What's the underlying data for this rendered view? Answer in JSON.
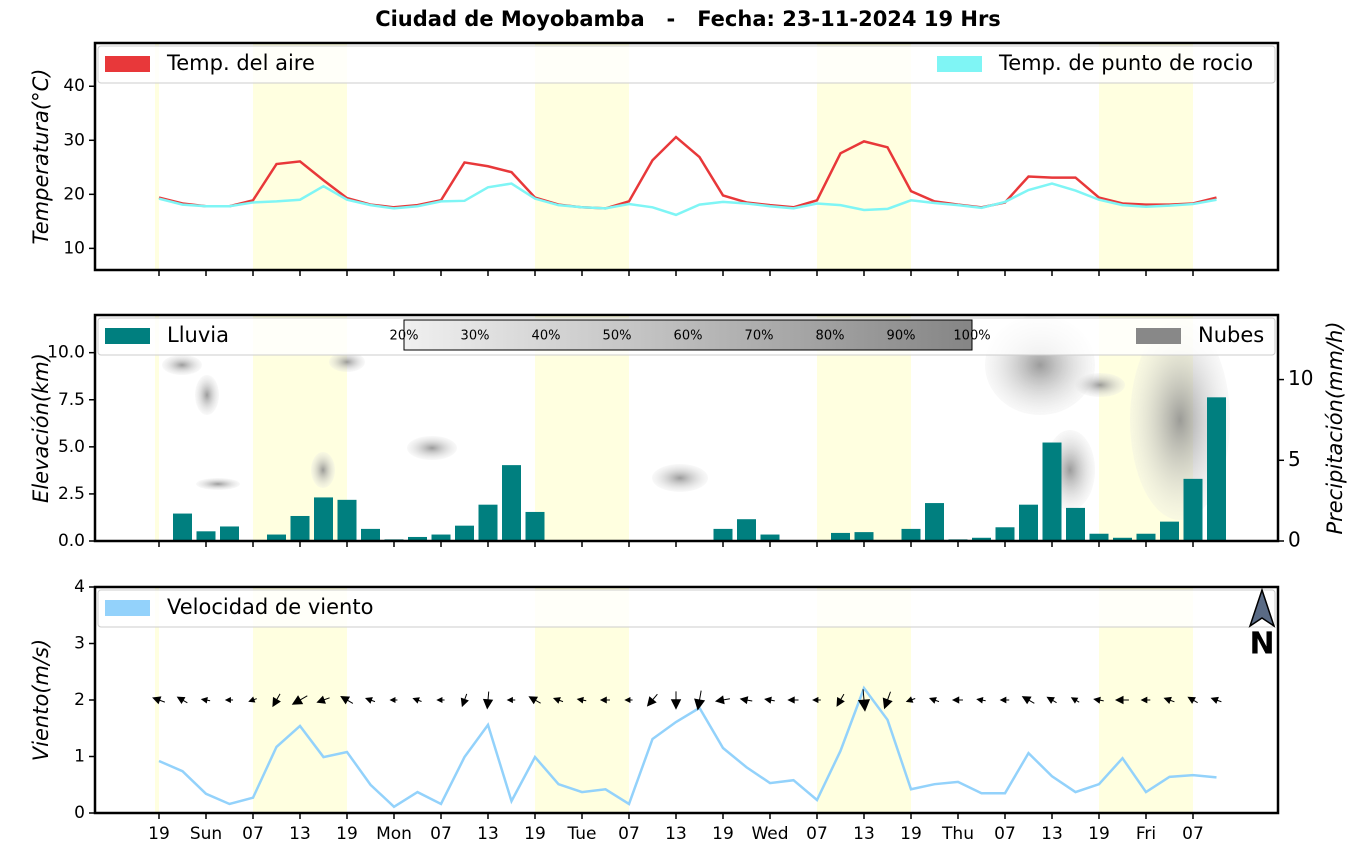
{
  "title": "Ciudad de Moyobamba   -   Fecha: 23-11-2024 19 Hrs",
  "north": "N",
  "chart_data": [
    {
      "type": "line",
      "ylabel": "Temperatura(°C)",
      "ylim": [
        6,
        48
      ],
      "yticks": [
        10,
        20,
        30,
        40
      ],
      "series": [
        {
          "name": "Temp. del aire",
          "color": "#e8383a",
          "values": [
            19.4,
            18.3,
            17.8,
            17.8,
            18.9,
            25.6,
            26.1,
            22.6,
            19.3,
            18.1,
            17.6,
            18.0,
            18.9,
            25.9,
            25.2,
            24.1,
            19.4,
            18.1,
            17.6,
            17.4,
            18.7,
            26.3,
            30.6,
            26.9,
            19.8,
            18.5,
            18.0,
            17.6,
            18.9,
            27.6,
            29.8,
            28.7,
            20.6,
            18.7,
            18.1,
            17.6,
            18.5,
            23.3,
            23.1,
            23.1,
            19.4,
            18.3,
            18.1,
            18.1,
            18.3,
            19.4
          ]
        },
        {
          "name": "Temp. de punto de rocio",
          "color": "#7ff5f5",
          "values": [
            19.2,
            18.1,
            17.8,
            17.8,
            18.5,
            18.7,
            19.0,
            21.5,
            19.0,
            18.0,
            17.4,
            17.8,
            18.7,
            18.8,
            21.3,
            22.0,
            19.2,
            18.0,
            17.6,
            17.4,
            18.2,
            17.6,
            16.2,
            18.1,
            18.6,
            18.3,
            17.8,
            17.4,
            18.3,
            18.0,
            17.1,
            17.3,
            18.9,
            18.4,
            18.0,
            17.5,
            18.6,
            20.8,
            22.0,
            20.7,
            19.0,
            18.0,
            17.7,
            17.9,
            18.2,
            19.0
          ]
        }
      ]
    },
    {
      "type": "bar",
      "ylabel": "Elevación(km)",
      "y2label": "Precipitación(mm/h)",
      "ylim": [
        0,
        12
      ],
      "yticks": [
        {
          "value": 0,
          "label": "0.0"
        },
        {
          "value": 2.5,
          "label": "2.5"
        },
        {
          "value": 5,
          "label": "5.0"
        },
        {
          "value": 7.5,
          "label": "7.5"
        },
        {
          "value": 10,
          "label": "10.0"
        }
      ],
      "y2lim": [
        0,
        14
      ],
      "y2ticks": [
        0,
        5,
        10
      ],
      "cloud_scale": [
        "20%",
        "30%",
        "40%",
        "50%",
        "60%",
        "70%",
        "80%",
        "90%",
        "100%"
      ],
      "series": [
        {
          "name": "Lluvia",
          "color": "#007f7f",
          "axis": "y2",
          "values": [
            0,
            1.7,
            0.6,
            0.9,
            0,
            0.4,
            1.55,
            2.7,
            2.55,
            0.75,
            0.1,
            0.25,
            0.4,
            0.95,
            2.25,
            4.7,
            1.8,
            0,
            0,
            0,
            0,
            0,
            0,
            0.05,
            0.75,
            1.35,
            0.4,
            0.05,
            0.05,
            0.5,
            0.55,
            0.05,
            0.75,
            2.35,
            0.1,
            0.2,
            0.85,
            2.25,
            6.1,
            2.05,
            0.45,
            0.2,
            0.45,
            1.2,
            3.85,
            8.9
          ]
        },
        {
          "name": "Nubes",
          "color": "#888888"
        }
      ]
    },
    {
      "type": "line",
      "ylabel": "Viento(m/s)",
      "ylim": [
        0,
        4
      ],
      "yticks": [
        0,
        1,
        2,
        3,
        4
      ],
      "categories": [
        "19",
        null,
        "Sun",
        null,
        "07",
        null,
        "13",
        null,
        "19",
        null,
        "Mon",
        null,
        "07",
        null,
        "13",
        null,
        "19",
        null,
        "Tue",
        null,
        "07",
        null,
        "13",
        null,
        "19",
        null,
        "Wed",
        null,
        "07",
        null,
        "13",
        null,
        "19",
        null,
        "Thu",
        null,
        "07",
        null,
        "13",
        null,
        "19",
        null,
        "Fri",
        null,
        "07",
        null
      ],
      "series": [
        {
          "name": "Velocidad de viento",
          "color": "#93d2fb",
          "values": [
            0.92,
            0.74,
            0.34,
            0.16,
            0.27,
            1.17,
            1.54,
            0.99,
            1.08,
            0.5,
            0.11,
            0.37,
            0.16,
            0.99,
            1.56,
            0.21,
            0.99,
            0.51,
            0.37,
            0.42,
            0.16,
            1.31,
            1.61,
            1.86,
            1.15,
            0.81,
            0.53,
            0.58,
            0.23,
            1.1,
            2.21,
            1.65,
            0.42,
            0.51,
            0.55,
            0.35,
            0.35,
            1.06,
            0.65,
            0.37,
            0.51,
            0.97,
            0.37,
            0.64,
            0.67,
            0.63
          ]
        }
      ],
      "wind_direction": [
        290,
        300,
        280,
        270,
        250,
        210,
        240,
        250,
        300,
        290,
        270,
        290,
        270,
        200,
        185,
        270,
        300,
        290,
        280,
        270,
        270,
        220,
        180,
        190,
        260,
        280,
        280,
        270,
        270,
        210,
        175,
        200,
        250,
        290,
        270,
        280,
        270,
        300,
        300,
        300,
        280,
        270,
        270,
        290,
        300,
        290
      ]
    }
  ]
}
